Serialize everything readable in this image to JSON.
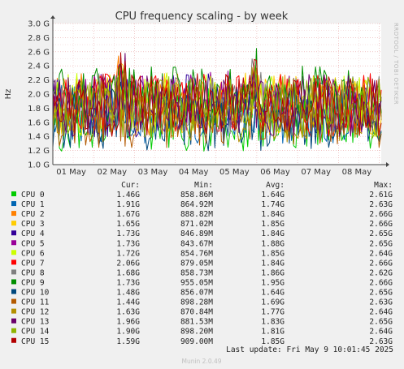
{
  "chart_data": {
    "type": "line",
    "title": "CPU frequency scaling - by week",
    "ylabel": "Hz",
    "side_label": "RRDTOOL / TOBI OETIKER",
    "ylim": [
      1.0,
      3.0
    ],
    "y_ticks": [
      {
        "value": 1.0,
        "label": "1.0 G"
      },
      {
        "value": 1.2,
        "label": "1.2 G"
      },
      {
        "value": 1.4,
        "label": "1.4 G"
      },
      {
        "value": 1.6,
        "label": "1.6 G"
      },
      {
        "value": 1.8,
        "label": "1.8 G"
      },
      {
        "value": 2.0,
        "label": "2.0 G"
      },
      {
        "value": 2.2,
        "label": "2.2 G"
      },
      {
        "value": 2.4,
        "label": "2.4 G"
      },
      {
        "value": 2.6,
        "label": "2.6 G"
      },
      {
        "value": 2.8,
        "label": "2.8 G"
      },
      {
        "value": 3.0,
        "label": "3.0 G"
      }
    ],
    "x_range_days": [
      0,
      8.05
    ],
    "x_ticks": [
      "01 May",
      "02 May",
      "03 May",
      "04 May",
      "05 May",
      "06 May",
      "07 May",
      "08 May"
    ],
    "legend_headers": {
      "cur": "Cur:",
      "min": "Min:",
      "avg": "Avg:",
      "max": "Max:"
    },
    "series": [
      {
        "name": "CPU 0",
        "color": "#00cc00",
        "cur": "1.46G",
        "min": "858.86M",
        "avg": "1.64G",
        "max": "2.61G",
        "seed": 11
      },
      {
        "name": "CPU 1",
        "color": "#0066b3",
        "cur": "1.91G",
        "min": "864.92M",
        "avg": "1.74G",
        "max": "2.63G",
        "seed": 23
      },
      {
        "name": "CPU 2",
        "color": "#ff8000",
        "cur": "1.67G",
        "min": "888.82M",
        "avg": "1.84G",
        "max": "2.66G",
        "seed": 37
      },
      {
        "name": "CPU 3",
        "color": "#ffcc00",
        "cur": "1.65G",
        "min": "871.02M",
        "avg": "1.85G",
        "max": "2.66G",
        "seed": 41
      },
      {
        "name": "CPU 4",
        "color": "#330099",
        "cur": "1.73G",
        "min": "846.89M",
        "avg": "1.84G",
        "max": "2.65G",
        "seed": 53
      },
      {
        "name": "CPU 5",
        "color": "#990099",
        "cur": "1.73G",
        "min": "843.67M",
        "avg": "1.88G",
        "max": "2.65G",
        "seed": 67
      },
      {
        "name": "CPU 6",
        "color": "#ccff00",
        "cur": "1.72G",
        "min": "854.76M",
        "avg": "1.85G",
        "max": "2.64G",
        "seed": 71
      },
      {
        "name": "CPU 7",
        "color": "#ff0000",
        "cur": "2.06G",
        "min": "879.05M",
        "avg": "1.84G",
        "max": "2.66G",
        "seed": 83
      },
      {
        "name": "CPU 8",
        "color": "#808080",
        "cur": "1.68G",
        "min": "858.73M",
        "avg": "1.86G",
        "max": "2.62G",
        "seed": 97
      },
      {
        "name": "CPU 9",
        "color": "#008f00",
        "cur": "1.73G",
        "min": "955.05M",
        "avg": "1.95G",
        "max": "2.66G",
        "seed": 101
      },
      {
        "name": "CPU 10",
        "color": "#00487d",
        "cur": "1.48G",
        "min": "856.07M",
        "avg": "1.64G",
        "max": "2.65G",
        "seed": 113
      },
      {
        "name": "CPU 11",
        "color": "#b35a00",
        "cur": "1.44G",
        "min": "898.28M",
        "avg": "1.69G",
        "max": "2.63G",
        "seed": 127
      },
      {
        "name": "CPU 12",
        "color": "#b38f00",
        "cur": "1.63G",
        "min": "870.84M",
        "avg": "1.77G",
        "max": "2.64G",
        "seed": 131
      },
      {
        "name": "CPU 13",
        "color": "#6b006b",
        "cur": "1.96G",
        "min": "881.53M",
        "avg": "1.83G",
        "max": "2.65G",
        "seed": 149
      },
      {
        "name": "CPU 14",
        "color": "#8fb300",
        "cur": "1.90G",
        "min": "898.20M",
        "avg": "1.81G",
        "max": "2.64G",
        "seed": 151
      },
      {
        "name": "CPU 15",
        "color": "#b30000",
        "cur": "1.59G",
        "min": "909.00M",
        "avg": "1.85G",
        "max": "2.63G",
        "seed": 163
      }
    ],
    "grid": true,
    "legend_placement": "bottom"
  },
  "footer": {
    "last_update": "Last update: Fri May  9 10:01:45 2025",
    "generator": "Munin 2.0.49"
  }
}
